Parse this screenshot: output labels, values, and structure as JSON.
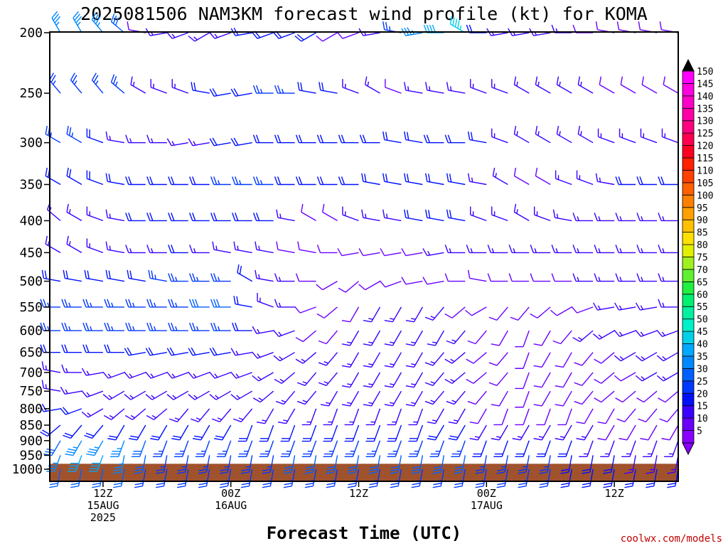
{
  "chart_data": {
    "type": "wind-barb-time-height",
    "title": "2025081506 NAM3KM forecast wind profile (kt) for KOMA",
    "xlabel": "Forecast Time (UTC)",
    "credit": "coolwx.com/models",
    "units": "kt",
    "y_axis": {
      "scale": "pressure (log)",
      "inverted": true,
      "ylim": [
        1000,
        200
      ],
      "ticks": [
        200,
        250,
        300,
        350,
        400,
        450,
        500,
        550,
        600,
        650,
        700,
        750,
        800,
        850,
        900,
        950,
        1000
      ]
    },
    "x_axis": {
      "range_hours": [
        7,
        66
      ],
      "ticks": [
        {
          "hour": 12,
          "lines": [
            "12Z",
            "15AUG",
            "2025"
          ]
        },
        {
          "hour": 24,
          "lines": [
            "00Z",
            "16AUG"
          ]
        },
        {
          "hour": 36,
          "lines": [
            "12Z"
          ]
        },
        {
          "hour": 48,
          "lines": [
            "00Z",
            "17AUG"
          ]
        },
        {
          "hour": 60,
          "lines": [
            "12Z"
          ]
        }
      ]
    },
    "colorbar": {
      "levels": [
        5,
        10,
        15,
        20,
        25,
        30,
        35,
        40,
        45,
        50,
        55,
        60,
        65,
        70,
        75,
        80,
        85,
        90,
        95,
        100,
        105,
        110,
        115,
        120,
        125,
        130,
        135,
        140,
        145,
        150
      ],
      "colors": [
        "#8a00ff",
        "#6a00ff",
        "#3a00ff",
        "#0010ff",
        "#0038ff",
        "#0060ff",
        "#0088ff",
        "#00a8ff",
        "#00d0e8",
        "#00f0c8",
        "#00f0a0",
        "#00f070",
        "#20f040",
        "#60f030",
        "#a0f020",
        "#e0f000",
        "#ffe000",
        "#ffc000",
        "#ffa000",
        "#ff8000",
        "#ff6000",
        "#ff4000",
        "#ff2000",
        "#ff0020",
        "#ff0050",
        "#ff0080",
        "#ff00a8",
        "#ff00c8",
        "#ff00e0",
        "#ff00ff"
      ],
      "extends": "both"
    },
    "terrain": {
      "color": "#a0522d",
      "surface_pressure_hpa": 975
    },
    "times_hours": [
      8,
      10,
      12,
      14,
      16,
      18,
      20,
      22,
      24,
      26,
      28,
      30,
      32,
      34,
      36,
      38,
      40,
      42,
      44,
      46,
      48,
      50,
      52,
      54,
      56,
      58,
      60,
      62,
      64,
      66
    ],
    "levels_hpa": [
      200,
      250,
      300,
      350,
      400,
      450,
      500,
      550,
      600,
      650,
      700,
      750,
      800,
      850,
      900,
      950,
      1000
    ],
    "profiles": [
      {
        "p": 200,
        "dir": [
          330,
          330,
          320,
          310,
          280,
          260,
          250,
          240,
          250,
          260,
          250,
          250,
          240,
          240,
          250,
          260,
          280,
          260,
          270,
          300,
          270,
          260,
          260,
          260,
          270,
          270,
          280,
          280,
          280,
          280
        ],
        "spd": [
          35,
          35,
          35,
          30,
          10,
          15,
          15,
          15,
          15,
          20,
          20,
          20,
          20,
          10,
          10,
          15,
          25,
          35,
          40,
          45,
          20,
          15,
          15,
          15,
          15,
          10,
          10,
          10,
          10,
          10
        ]
      },
      {
        "p": 250,
        "dir": [
          320,
          320,
          320,
          310,
          300,
          290,
          290,
          280,
          260,
          260,
          270,
          270,
          280,
          280,
          290,
          300,
          290,
          280,
          280,
          280,
          290,
          290,
          300,
          300,
          300,
          300,
          300,
          300,
          300,
          300
        ],
        "spd": [
          25,
          25,
          25,
          25,
          15,
          15,
          15,
          20,
          20,
          20,
          25,
          25,
          20,
          20,
          15,
          15,
          10,
          15,
          15,
          15,
          15,
          15,
          15,
          15,
          15,
          15,
          10,
          10,
          10,
          10
        ]
      },
      {
        "p": 300,
        "dir": [
          300,
          300,
          290,
          280,
          270,
          270,
          260,
          260,
          260,
          260,
          270,
          270,
          270,
          270,
          270,
          270,
          280,
          280,
          270,
          270,
          280,
          290,
          300,
          300,
          300,
          300,
          290,
          290,
          290,
          290
        ],
        "spd": [
          25,
          25,
          20,
          15,
          15,
          15,
          15,
          15,
          20,
          20,
          20,
          20,
          20,
          20,
          20,
          20,
          20,
          20,
          20,
          20,
          20,
          15,
          15,
          15,
          15,
          15,
          15,
          15,
          15,
          15
        ]
      },
      {
        "p": 350,
        "dir": [
          300,
          300,
          290,
          280,
          270,
          270,
          270,
          270,
          270,
          270,
          270,
          270,
          270,
          270,
          270,
          280,
          280,
          280,
          280,
          280,
          280,
          300,
          300,
          300,
          290,
          290,
          280,
          270,
          270,
          270
        ],
        "spd": [
          20,
          20,
          20,
          20,
          20,
          20,
          20,
          20,
          25,
          25,
          25,
          20,
          20,
          20,
          20,
          20,
          20,
          20,
          20,
          20,
          15,
          15,
          10,
          10,
          15,
          15,
          15,
          20,
          20,
          20
        ]
      },
      {
        "p": 400,
        "dir": [
          310,
          300,
          290,
          280,
          270,
          270,
          270,
          270,
          270,
          270,
          270,
          280,
          300,
          300,
          290,
          280,
          280,
          280,
          280,
          280,
          290,
          290,
          300,
          290,
          280,
          270,
          270,
          270,
          270,
          270
        ],
        "spd": [
          15,
          15,
          15,
          15,
          20,
          20,
          20,
          20,
          20,
          20,
          20,
          15,
          10,
          10,
          15,
          15,
          15,
          20,
          20,
          20,
          15,
          15,
          15,
          15,
          15,
          15,
          15,
          15,
          15,
          15
        ]
      },
      {
        "p": 450,
        "dir": [
          300,
          300,
          290,
          280,
          270,
          270,
          270,
          270,
          280,
          280,
          280,
          280,
          280,
          270,
          260,
          260,
          260,
          260,
          260,
          270,
          270,
          270,
          270,
          270,
          270,
          270,
          270,
          270,
          270,
          270
        ],
        "spd": [
          15,
          15,
          15,
          15,
          15,
          15,
          20,
          15,
          15,
          15,
          15,
          10,
          10,
          10,
          10,
          10,
          10,
          10,
          15,
          15,
          15,
          15,
          15,
          15,
          15,
          15,
          15,
          15,
          15,
          15
        ]
      },
      {
        "p": 500,
        "dir": [
          280,
          280,
          280,
          280,
          280,
          280,
          270,
          270,
          270,
          300,
          280,
          270,
          270,
          240,
          230,
          240,
          250,
          260,
          260,
          270,
          280,
          270,
          270,
          270,
          270,
          270,
          270,
          270,
          270,
          270
        ],
        "spd": [
          20,
          20,
          20,
          20,
          20,
          25,
          25,
          25,
          25,
          20,
          15,
          15,
          10,
          10,
          10,
          10,
          10,
          10,
          10,
          10,
          10,
          10,
          10,
          10,
          10,
          15,
          15,
          15,
          15,
          15
        ]
      },
      {
        "p": 550,
        "dir": [
          270,
          270,
          270,
          270,
          270,
          270,
          270,
          270,
          270,
          280,
          290,
          270,
          250,
          230,
          210,
          210,
          210,
          210,
          220,
          230,
          240,
          220,
          220,
          230,
          240,
          250,
          260,
          260,
          260,
          270
        ],
        "spd": [
          25,
          25,
          25,
          25,
          25,
          25,
          25,
          30,
          30,
          20,
          15,
          15,
          10,
          10,
          10,
          15,
          15,
          15,
          15,
          10,
          10,
          10,
          10,
          10,
          10,
          10,
          15,
          15,
          15,
          15
        ]
      },
      {
        "p": 600,
        "dir": [
          270,
          270,
          270,
          270,
          270,
          270,
          270,
          270,
          270,
          270,
          260,
          250,
          230,
          220,
          210,
          210,
          210,
          210,
          210,
          220,
          220,
          210,
          200,
          210,
          220,
          230,
          240,
          250,
          250,
          250
        ],
        "spd": [
          25,
          25,
          25,
          25,
          25,
          25,
          25,
          25,
          25,
          20,
          15,
          15,
          10,
          10,
          15,
          15,
          15,
          15,
          15,
          15,
          10,
          10,
          10,
          10,
          10,
          15,
          15,
          15,
          15,
          15
        ]
      },
      {
        "p": 650,
        "dir": [
          270,
          270,
          270,
          270,
          260,
          260,
          260,
          260,
          260,
          260,
          250,
          240,
          230,
          220,
          210,
          210,
          210,
          210,
          220,
          230,
          230,
          220,
          200,
          210,
          210,
          220,
          230,
          240,
          240,
          240
        ],
        "spd": [
          20,
          20,
          20,
          20,
          20,
          20,
          20,
          20,
          20,
          15,
          15,
          15,
          15,
          15,
          15,
          15,
          15,
          15,
          15,
          15,
          10,
          10,
          10,
          10,
          10,
          10,
          10,
          15,
          15,
          15
        ]
      },
      {
        "p": 700,
        "dir": [
          280,
          270,
          260,
          250,
          250,
          250,
          250,
          250,
          250,
          250,
          240,
          230,
          220,
          220,
          210,
          210,
          210,
          210,
          220,
          230,
          230,
          220,
          200,
          210,
          210,
          220,
          230,
          240,
          240,
          240
        ],
        "spd": [
          15,
          15,
          15,
          15,
          15,
          15,
          15,
          15,
          15,
          15,
          15,
          15,
          15,
          15,
          15,
          15,
          15,
          15,
          15,
          15,
          10,
          10,
          10,
          10,
          10,
          10,
          10,
          10,
          15,
          15
        ]
      },
      {
        "p": 750,
        "dir": [
          280,
          260,
          250,
          240,
          240,
          240,
          240,
          240,
          240,
          240,
          230,
          220,
          220,
          210,
          210,
          210,
          210,
          210,
          220,
          220,
          220,
          210,
          200,
          210,
          210,
          220,
          230,
          230,
          230,
          230
        ],
        "spd": [
          15,
          15,
          15,
          15,
          15,
          15,
          15,
          15,
          15,
          15,
          15,
          15,
          15,
          15,
          15,
          15,
          15,
          15,
          15,
          15,
          10,
          10,
          10,
          10,
          10,
          10,
          10,
          10,
          10,
          10
        ]
      },
      {
        "p": 800,
        "dir": [
          260,
          250,
          240,
          230,
          230,
          230,
          220,
          220,
          220,
          220,
          210,
          210,
          200,
          200,
          200,
          200,
          200,
          200,
          210,
          210,
          210,
          200,
          200,
          200,
          200,
          210,
          210,
          220,
          220,
          220
        ],
        "spd": [
          20,
          20,
          15,
          15,
          15,
          15,
          15,
          15,
          15,
          15,
          15,
          15,
          15,
          15,
          15,
          15,
          15,
          15,
          15,
          15,
          10,
          10,
          10,
          10,
          10,
          10,
          10,
          10,
          10,
          10
        ]
      },
      {
        "p": 850,
        "dir": [
          230,
          220,
          220,
          210,
          210,
          210,
          210,
          210,
          210,
          200,
          200,
          200,
          200,
          200,
          200,
          200,
          200,
          200,
          210,
          210,
          210,
          210,
          210,
          210,
          210,
          210,
          210,
          210,
          210,
          210
        ],
        "spd": [
          20,
          20,
          20,
          20,
          20,
          20,
          20,
          20,
          20,
          20,
          20,
          20,
          20,
          20,
          20,
          20,
          20,
          20,
          20,
          20,
          15,
          15,
          15,
          15,
          15,
          15,
          10,
          10,
          10,
          10
        ]
      },
      {
        "p": 900,
        "dir": [
          210,
          210,
          210,
          200,
          200,
          200,
          200,
          200,
          200,
          200,
          200,
          200,
          200,
          200,
          200,
          200,
          200,
          200,
          200,
          200,
          200,
          200,
          200,
          200,
          200,
          200,
          200,
          200,
          200,
          200
        ],
        "spd": [
          30,
          35,
          35,
          35,
          30,
          25,
          25,
          25,
          25,
          25,
          25,
          25,
          25,
          25,
          25,
          25,
          25,
          25,
          25,
          25,
          20,
          20,
          20,
          20,
          20,
          15,
          15,
          15,
          15,
          15
        ]
      },
      {
        "p": 950,
        "dir": [
          200,
          200,
          200,
          190,
          190,
          190,
          190,
          190,
          190,
          190,
          190,
          190,
          190,
          190,
          190,
          190,
          190,
          190,
          190,
          190,
          190,
          190,
          190,
          190,
          190,
          190,
          190,
          190,
          190,
          190
        ],
        "spd": [
          35,
          40,
          40,
          35,
          30,
          25,
          25,
          25,
          25,
          25,
          25,
          30,
          30,
          30,
          30,
          30,
          30,
          30,
          30,
          30,
          25,
          25,
          25,
          25,
          20,
          20,
          20,
          15,
          15,
          15
        ]
      },
      {
        "p": 1000,
        "dir": [
          190,
          190,
          190,
          190,
          190,
          190,
          190,
          190,
          190,
          190,
          190,
          190,
          190,
          190,
          190,
          190,
          190,
          190,
          190,
          190,
          190,
          190,
          190,
          190,
          190,
          190,
          190,
          190,
          190,
          190
        ],
        "spd": [
          30,
          30,
          30,
          30,
          25,
          25,
          25,
          25,
          25,
          25,
          25,
          25,
          25,
          25,
          25,
          25,
          25,
          25,
          25,
          25,
          25,
          25,
          25,
          25,
          20,
          20,
          20,
          20,
          20,
          20
        ]
      }
    ]
  }
}
